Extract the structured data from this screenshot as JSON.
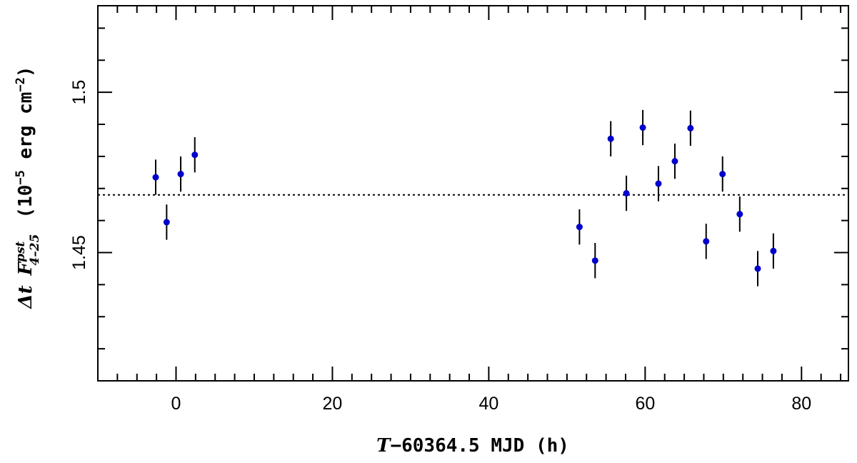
{
  "chart_data": {
    "type": "scatter",
    "title": "",
    "xlabel": {
      "var": "T",
      "rest": "−60364.5 MJD (h)"
    },
    "ylabel": {
      "prefix": "Δt",
      "var": "F",
      "superscript": "pst",
      "subscript": "4–25",
      "unit_open": "(10",
      "unit_exp": "−5",
      "unit_mid": " erg cm",
      "unit_exp2": "−2",
      "unit_close": ")"
    },
    "xlim": [
      -10,
      86
    ],
    "ylim": [
      1.41,
      1.527
    ],
    "x_major_ticks": [
      0,
      20,
      40,
      60,
      80
    ],
    "x_minor_step": 2.5,
    "x_tick_labels": [
      "0",
      "20",
      "40",
      "60",
      "80"
    ],
    "y_major_ticks": [
      1.45,
      1.5
    ],
    "y_minor_ticks": [
      1.42,
      1.43,
      1.44,
      1.46,
      1.47,
      1.48,
      1.49,
      1.51,
      1.52
    ],
    "y_tick_labels": [
      "1.45",
      "1.5"
    ],
    "reference_line": {
      "y": 1.468,
      "style": "dotted"
    },
    "marker_color": "#0000cc",
    "errorbar_color": "#000000",
    "points": [
      {
        "x": -2.6,
        "y": 1.4735,
        "err": 0.0055
      },
      {
        "x": -1.2,
        "y": 1.4595,
        "err": 0.0055
      },
      {
        "x": 0.6,
        "y": 1.4745,
        "err": 0.0055
      },
      {
        "x": 2.4,
        "y": 1.4805,
        "err": 0.0055
      },
      {
        "x": 51.6,
        "y": 1.458,
        "err": 0.0055
      },
      {
        "x": 53.6,
        "y": 1.4475,
        "err": 0.0055
      },
      {
        "x": 55.6,
        "y": 1.4855,
        "err": 0.0055
      },
      {
        "x": 57.6,
        "y": 1.4685,
        "err": 0.0055
      },
      {
        "x": 59.7,
        "y": 1.489,
        "err": 0.0055
      },
      {
        "x": 61.7,
        "y": 1.4715,
        "err": 0.0055
      },
      {
        "x": 63.8,
        "y": 1.4785,
        "err": 0.0055
      },
      {
        "x": 65.8,
        "y": 1.4888,
        "err": 0.0055
      },
      {
        "x": 67.8,
        "y": 1.4535,
        "err": 0.0055
      },
      {
        "x": 69.9,
        "y": 1.4745,
        "err": 0.0055
      },
      {
        "x": 72.1,
        "y": 1.462,
        "err": 0.0055
      },
      {
        "x": 74.4,
        "y": 1.445,
        "err": 0.0055
      },
      {
        "x": 76.4,
        "y": 1.4505,
        "err": 0.0055
      }
    ]
  }
}
